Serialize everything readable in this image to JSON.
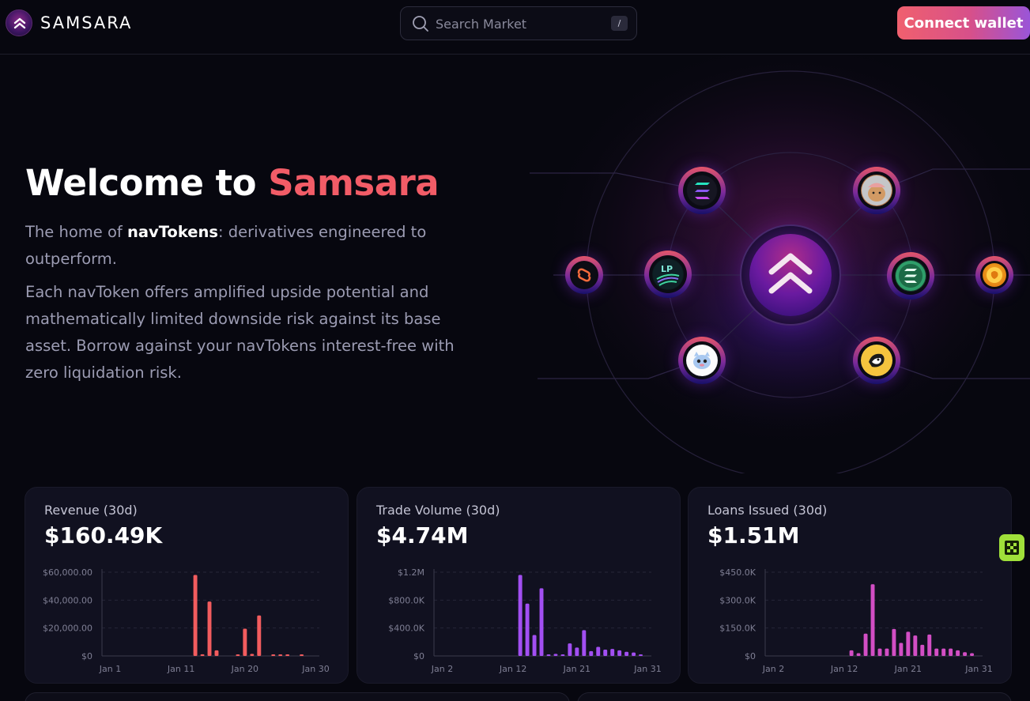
{
  "header": {
    "logo_text": "SAMSARA",
    "search_placeholder": "Search Market",
    "search_shortcut": "/",
    "connect_label": "Connect wallet"
  },
  "hero": {
    "title_prefix": "Welcome to ",
    "title_accent": "Samsara",
    "p1_before": "The home of ",
    "p1_bold": "navTokens",
    "p1_after": ": derivatives engineered to outperform.",
    "p2": "Each navToken offers amplified upside potential and mathematically limited downside risk against its base asset. Borrow against your navTokens interest-free with zero liquidation risk."
  },
  "colors": {
    "accent": "#f25c67",
    "revenue": "#f25c5e",
    "volume": "#a24ff2",
    "loans": "#d24ec4"
  },
  "graphic": {
    "center_icon": "samsara-chevrons-icon",
    "tokens": [
      "solana-token-icon",
      "dog-token-icon",
      "synapse-token-icon",
      "lp-token-icon",
      "solana-green-token-icon",
      "bonk-token-icon",
      "cat-token-icon",
      "penguin-token-icon"
    ]
  },
  "cards": [
    {
      "label": "Revenue (30d)",
      "value": "$160.49K"
    },
    {
      "label": "Trade Volume (30d)",
      "value": "$4.74M"
    },
    {
      "label": "Loans Issued (30d)",
      "value": "$1.51M"
    }
  ],
  "chart_data": [
    {
      "type": "bar",
      "title": "Revenue (30d)",
      "y_ticks": [
        "$0",
        "$20,000.00",
        "$40,000.00",
        "$60,000.00"
      ],
      "ylim": [
        0,
        60000
      ],
      "x_ticks": [
        "Jan 1",
        "Jan 11",
        "Jan 20",
        "Jan 30"
      ],
      "categories": [
        "Jan 1",
        "Jan 2",
        "Jan 3",
        "Jan 4",
        "Jan 5",
        "Jan 6",
        "Jan 7",
        "Jan 8",
        "Jan 9",
        "Jan 10",
        "Jan 11",
        "Jan 12",
        "Jan 13",
        "Jan 14",
        "Jan 15",
        "Jan 16",
        "Jan 17",
        "Jan 18",
        "Jan 19",
        "Jan 20",
        "Jan 21",
        "Jan 22",
        "Jan 23",
        "Jan 24",
        "Jan 25",
        "Jan 26",
        "Jan 27",
        "Jan 28",
        "Jan 29",
        "Jan 30"
      ],
      "values": [
        0,
        0,
        0,
        0,
        0,
        0,
        0,
        0,
        0,
        0,
        0,
        0,
        58000,
        1200,
        39000,
        4000,
        0,
        0,
        600,
        19500,
        1500,
        29000,
        0,
        1000,
        600,
        700,
        0,
        400,
        0,
        0
      ],
      "grid": true
    },
    {
      "type": "bar",
      "title": "Trade Volume (30d)",
      "y_ticks": [
        "$0",
        "$400.0K",
        "$800.0K",
        "$1.2M"
      ],
      "ylim": [
        0,
        1200000
      ],
      "x_ticks": [
        "Jan 2",
        "Jan 12",
        "Jan 21",
        "Jan 31"
      ],
      "categories": [
        "Jan 2",
        "Jan 3",
        "Jan 4",
        "Jan 5",
        "Jan 6",
        "Jan 7",
        "Jan 8",
        "Jan 9",
        "Jan 10",
        "Jan 11",
        "Jan 12",
        "Jan 13",
        "Jan 14",
        "Jan 15",
        "Jan 16",
        "Jan 17",
        "Jan 18",
        "Jan 19",
        "Jan 20",
        "Jan 21",
        "Jan 22",
        "Jan 23",
        "Jan 24",
        "Jan 25",
        "Jan 26",
        "Jan 27",
        "Jan 28",
        "Jan 29",
        "Jan 30",
        "Jan 31"
      ],
      "values": [
        0,
        0,
        0,
        0,
        0,
        0,
        0,
        0,
        0,
        0,
        0,
        1160000,
        750000,
        300000,
        970000,
        20000,
        30000,
        20000,
        180000,
        120000,
        370000,
        70000,
        130000,
        90000,
        100000,
        80000,
        60000,
        50000,
        10000,
        0
      ],
      "grid": true
    },
    {
      "type": "bar",
      "title": "Loans Issued (30d)",
      "y_ticks": [
        "$0",
        "$150.0K",
        "$300.0K",
        "$450.0K"
      ],
      "ylim": [
        0,
        450000
      ],
      "x_ticks": [
        "Jan 2",
        "Jan 12",
        "Jan 21",
        "Jan 31"
      ],
      "categories": [
        "Jan 2",
        "Jan 3",
        "Jan 4",
        "Jan 5",
        "Jan 6",
        "Jan 7",
        "Jan 8",
        "Jan 9",
        "Jan 10",
        "Jan 11",
        "Jan 12",
        "Jan 13",
        "Jan 14",
        "Jan 15",
        "Jan 16",
        "Jan 17",
        "Jan 18",
        "Jan 19",
        "Jan 20",
        "Jan 21",
        "Jan 22",
        "Jan 23",
        "Jan 24",
        "Jan 25",
        "Jan 26",
        "Jan 27",
        "Jan 28",
        "Jan 29",
        "Jan 30",
        "Jan 31"
      ],
      "values": [
        0,
        0,
        0,
        0,
        0,
        0,
        0,
        0,
        0,
        0,
        0,
        30000,
        15000,
        120000,
        385000,
        40000,
        40000,
        145000,
        70000,
        130000,
        110000,
        60000,
        115000,
        40000,
        40000,
        40000,
        30000,
        20000,
        15000,
        0
      ],
      "grid": true
    }
  ]
}
